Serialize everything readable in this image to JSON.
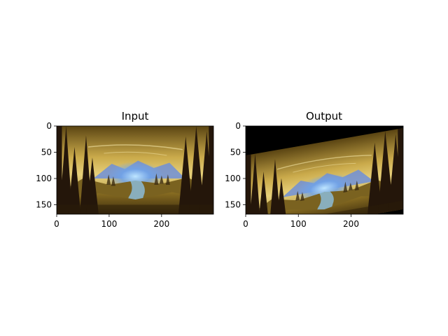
{
  "chart_data": [
    {
      "type": "image",
      "title": "Input",
      "xlim": [
        0,
        299
      ],
      "ylim": [
        168,
        0
      ],
      "xticks": [
        0,
        100,
        200
      ],
      "yticks": [
        0,
        50,
        100,
        150
      ],
      "scene": "forest-valley-painting",
      "transform": "none"
    },
    {
      "type": "image",
      "title": "Output",
      "xlim": [
        0,
        299
      ],
      "ylim": [
        168,
        0
      ],
      "xticks": [
        0,
        100,
        200
      ],
      "yticks": [
        0,
        50,
        100,
        150
      ],
      "scene": "forest-valley-painting",
      "transform": "affine-shear",
      "fill_color": "#000000"
    }
  ],
  "colors": {
    "sky_top": "#8a6a1c",
    "sky_glow": "#e0c86a",
    "mountain_blue": "#7aa8e8",
    "river_glow": "#9fd8ff",
    "ground": "#6b5418",
    "tree_dark": "#2a1a0a"
  }
}
